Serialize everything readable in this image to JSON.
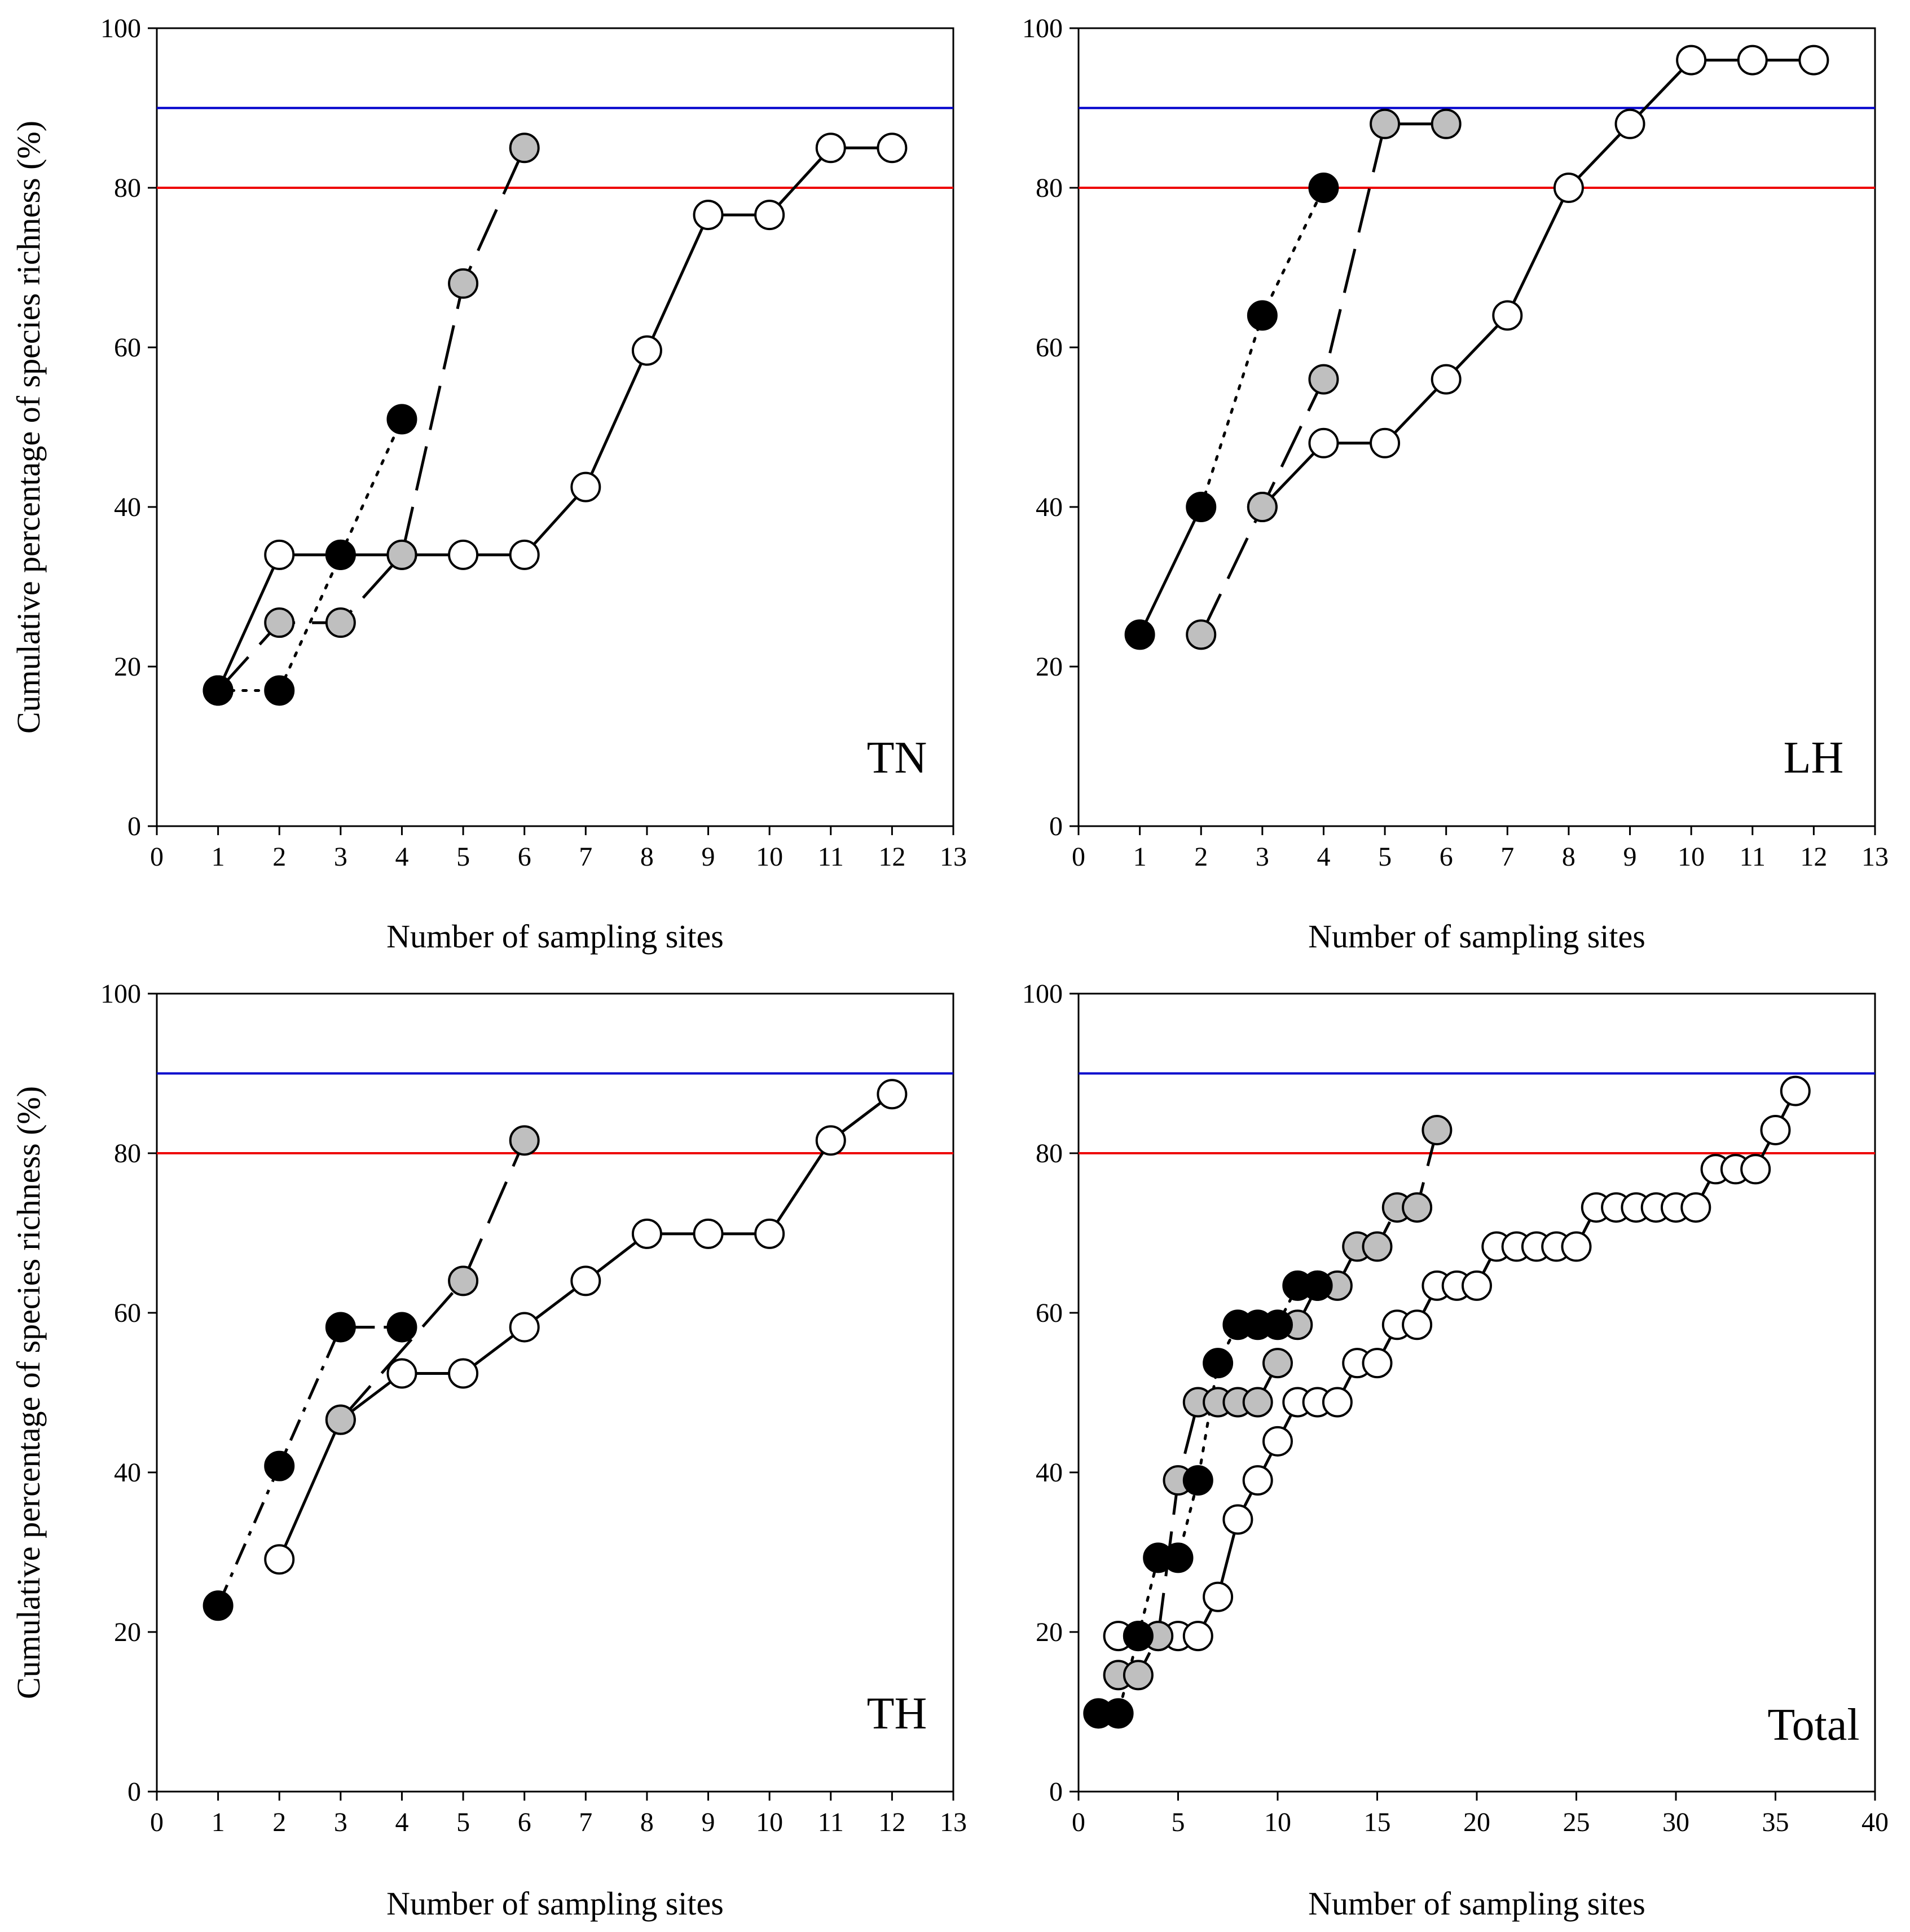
{
  "figure": {
    "y_axis_title": "Cumulative percentage of species richness (%)",
    "x_axis_title": "Number of sampling sites"
  },
  "colors": {
    "ref_line_90": "#0000cc",
    "ref_line_80": "#ee0000",
    "marker_black": "#000000",
    "marker_gray": "#bfbfbf",
    "marker_white": "#ffffff"
  },
  "chart_data": [
    {
      "type": "line",
      "label": "TN",
      "xlabel": "Number of sampling sites",
      "ylabel": "Cumulative percentage of species richness (%)",
      "xlim": [
        0,
        13
      ],
      "ylim": [
        0,
        100
      ],
      "xticks": [
        0,
        1,
        2,
        3,
        4,
        5,
        6,
        7,
        8,
        9,
        10,
        11,
        12,
        13
      ],
      "yticks": [
        0,
        20,
        40,
        60,
        80,
        100
      ],
      "reference_lines": [
        90,
        80
      ],
      "series": [
        {
          "name": "white",
          "marker": "white",
          "dash": "solid",
          "x": [
            1,
            2,
            3,
            4,
            5,
            6,
            7,
            8,
            9,
            10,
            11,
            12
          ],
          "y": [
            17,
            34,
            34,
            34,
            34,
            34,
            42.5,
            59.6,
            76.6,
            76.6,
            85,
            85
          ]
        },
        {
          "name": "gray",
          "marker": "gray",
          "dash": "long-dash",
          "x": [
            1,
            2,
            3,
            4,
            5,
            6
          ],
          "y": [
            17,
            25.5,
            25.5,
            34,
            68,
            85
          ]
        },
        {
          "name": "black",
          "marker": "black",
          "dash": "dotted",
          "x": [
            1,
            2,
            3,
            4
          ],
          "y": [
            17,
            17,
            34,
            51
          ]
        }
      ]
    },
    {
      "type": "line",
      "label": "LH",
      "xlabel": "Number of sampling sites",
      "ylabel": "",
      "xlim": [
        0,
        13
      ],
      "ylim": [
        0,
        100
      ],
      "xticks": [
        0,
        1,
        2,
        3,
        4,
        5,
        6,
        7,
        8,
        9,
        10,
        11,
        12,
        13
      ],
      "yticks": [
        0,
        20,
        40,
        60,
        80,
        100
      ],
      "reference_lines": [
        90,
        80
      ],
      "series": [
        {
          "name": "white",
          "marker": "white",
          "dash": "solid",
          "x": [
            3,
            4,
            5,
            6,
            7,
            8,
            9,
            10,
            11,
            12
          ],
          "y": [
            40,
            48,
            48,
            56,
            64,
            80,
            88,
            96,
            96,
            96
          ]
        },
        {
          "name": "gray",
          "marker": "gray",
          "dash": "long-dash",
          "x": [
            2,
            3,
            4,
            5,
            6
          ],
          "y": [
            24,
            40,
            56,
            88,
            88
          ]
        },
        {
          "name": "black",
          "marker": "black",
          "dash": "solid-then-dotted",
          "x": [
            1,
            2,
            3,
            4
          ],
          "y": [
            24,
            40,
            64,
            80
          ]
        }
      ]
    },
    {
      "type": "line",
      "label": "TH",
      "xlabel": "Number of sampling sites",
      "ylabel": "Cumulative percentage of species richness (%)",
      "xlim": [
        0,
        13
      ],
      "ylim": [
        0,
        100
      ],
      "xticks": [
        0,
        1,
        2,
        3,
        4,
        5,
        6,
        7,
        8,
        9,
        10,
        11,
        12,
        13
      ],
      "yticks": [
        0,
        20,
        40,
        60,
        80,
        100
      ],
      "reference_lines": [
        90,
        80
      ],
      "series": [
        {
          "name": "white",
          "marker": "white",
          "dash": "solid",
          "x": [
            2,
            3,
            4,
            5,
            6,
            7,
            8,
            9,
            10,
            11,
            12
          ],
          "y": [
            29.1,
            46.6,
            52.4,
            52.4,
            58.2,
            64,
            69.9,
            69.9,
            69.9,
            81.6,
            87.4
          ]
        },
        {
          "name": "gray",
          "marker": "gray",
          "dash": "long-dash",
          "x": [
            3,
            5,
            6
          ],
          "y": [
            46.6,
            64,
            81.6
          ]
        },
        {
          "name": "black",
          "marker": "black",
          "dash": "dash-dot",
          "x": [
            1,
            2,
            3,
            4
          ],
          "y": [
            23.3,
            40.8,
            58.2,
            58.2
          ]
        }
      ]
    },
    {
      "type": "line",
      "label": "Total",
      "xlabel": "Number of sampling sites",
      "ylabel": "",
      "xlim": [
        0,
        40
      ],
      "ylim": [
        0,
        100
      ],
      "xticks": [
        0,
        5,
        10,
        15,
        20,
        25,
        30,
        35,
        40
      ],
      "yticks": [
        0,
        20,
        40,
        60,
        80,
        100
      ],
      "reference_lines": [
        90,
        80
      ],
      "series": [
        {
          "name": "white",
          "marker": "white",
          "dash": "solid",
          "x": [
            2,
            3,
            4,
            5,
            6,
            7,
            8,
            9,
            10,
            11,
            12,
            13,
            14,
            15,
            16,
            17,
            18,
            19,
            20,
            21,
            22,
            23,
            24,
            25,
            26,
            27,
            28,
            29,
            30,
            31,
            32,
            33,
            34,
            35,
            36
          ],
          "y": [
            19.5,
            19.5,
            19.5,
            19.5,
            19.5,
            24.4,
            34.1,
            39,
            43.9,
            48.8,
            48.8,
            48.8,
            53.7,
            53.7,
            58.5,
            58.5,
            63.4,
            63.4,
            63.4,
            68.3,
            68.3,
            68.3,
            68.3,
            68.3,
            73.2,
            73.2,
            73.2,
            73.2,
            73.2,
            73.2,
            78,
            78,
            78,
            82.9,
            87.8
          ]
        },
        {
          "name": "gray",
          "marker": "gray",
          "dash": "long-dash",
          "x": [
            2,
            3,
            4,
            5,
            6,
            7,
            8,
            9,
            10,
            11,
            12,
            13,
            14,
            15,
            16,
            17,
            18
          ],
          "y": [
            14.6,
            14.6,
            19.5,
            39,
            48.8,
            48.8,
            48.8,
            48.8,
            53.7,
            58.5,
            63.4,
            63.4,
            68.3,
            68.3,
            73.2,
            73.2,
            82.9
          ]
        },
        {
          "name": "black",
          "marker": "black",
          "dash": "dotted",
          "x": [
            1,
            2,
            3,
            4,
            5,
            6,
            7,
            8,
            9,
            10,
            11,
            12
          ],
          "y": [
            9.8,
            9.8,
            19.5,
            29.3,
            29.3,
            39,
            53.7,
            58.5,
            58.5,
            58.5,
            63.4,
            63.4
          ]
        }
      ]
    }
  ]
}
